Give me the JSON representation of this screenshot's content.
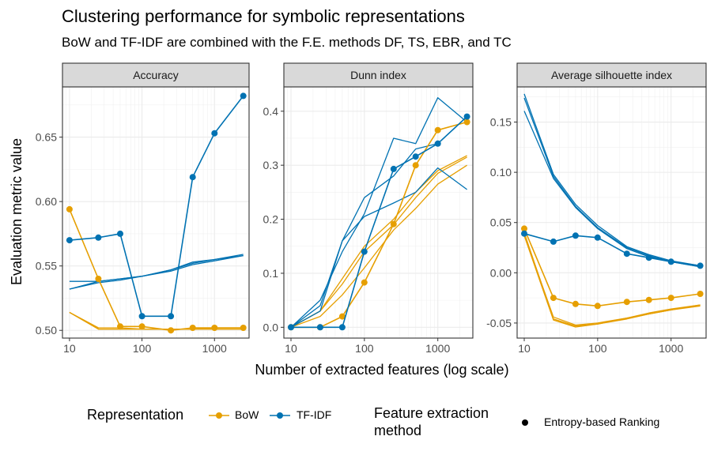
{
  "chart_data": {
    "type": "line",
    "title": "Clustering performance for symbolic representations",
    "subtitle": "BoW and TF-IDF are combined with the F.E. methods DF, TS, EBR, and TC",
    "xlabel": "Number of extracted features (log scale)",
    "ylabel": "Evaluation metric value",
    "x_scale": "log10",
    "x": [
      10,
      25,
      50,
      100,
      250,
      500,
      1000,
      2500
    ],
    "colors": {
      "BoW": "#E69F00",
      "TF-IDF": "#0072B2"
    },
    "legend": {
      "position": "bottom",
      "representation_title": "Representation",
      "representation_items": [
        "BoW",
        "TF-IDF"
      ],
      "method_title": "Feature extraction method",
      "method_items": [
        "Entropy-based Ranking"
      ]
    },
    "panels": [
      {
        "name": "Accuracy",
        "xlim": [
          8,
          3000
        ],
        "ylim": [
          0.494,
          0.689
        ],
        "xticks": [
          10,
          100,
          1000
        ],
        "xtick_labels": [
          "10",
          "100",
          "1000"
        ],
        "yticks": [
          0.5,
          0.55,
          0.6,
          0.65
        ],
        "ytick_labels": [
          "0.50",
          "0.55",
          "0.60",
          "0.65"
        ],
        "ebr": [
          {
            "representation": "BoW",
            "values": [
              0.594,
              0.54,
              0.503,
              0.503,
              0.5,
              0.502,
              0.502,
              0.502
            ]
          },
          {
            "representation": "TF-IDF",
            "values": [
              0.57,
              0.572,
              0.575,
              0.511,
              0.511,
              0.619,
              0.653,
              0.682
            ]
          }
        ],
        "other": [
          {
            "representation": "BoW",
            "values": [
              0.514,
              0.501,
              0.501,
              0.501,
              0.501,
              0.501,
              0.501,
              0.501
            ]
          },
          {
            "representation": "BoW",
            "values": [
              0.514,
              0.502,
              0.502,
              0.501,
              0.501,
              0.501,
              0.501,
              0.501
            ]
          },
          {
            "representation": "BoW",
            "values": [
              0.514,
              0.501,
              0.501,
              0.501,
              0.501,
              0.501,
              0.502,
              0.502
            ]
          },
          {
            "representation": "TF-IDF",
            "values": [
              0.532,
              0.538,
              0.54,
              0.542,
              0.546,
              0.551,
              0.554,
              0.558
            ]
          },
          {
            "representation": "TF-IDF",
            "values": [
              0.538,
              0.538,
              0.54,
              0.542,
              0.547,
              0.552,
              0.555,
              0.559
            ]
          },
          {
            "representation": "TF-IDF",
            "values": [
              0.532,
              0.537,
              0.539,
              0.542,
              0.547,
              0.553,
              0.555,
              0.558
            ]
          }
        ]
      },
      {
        "name": "Dunn index",
        "xlim": [
          8,
          3000
        ],
        "ylim": [
          -0.02,
          0.445
        ],
        "xticks": [
          10,
          100,
          1000
        ],
        "xtick_labels": [
          "10",
          "100",
          "1000"
        ],
        "yticks": [
          0.0,
          0.1,
          0.2,
          0.3,
          0.4
        ],
        "ytick_labels": [
          "0.0",
          "0.1",
          "0.2",
          "0.3",
          "0.4"
        ],
        "ebr": [
          {
            "representation": "BoW",
            "values": [
              0.0,
              0.0,
              0.02,
              0.083,
              0.191,
              0.3,
              0.365,
              0.38
            ]
          },
          {
            "representation": "TF-IDF",
            "values": [
              0.0,
              0.0,
              0.0,
              0.14,
              0.293,
              0.316,
              0.34,
              0.39
            ]
          }
        ],
        "other": [
          {
            "representation": "BoW",
            "values": [
              0.0,
              0.03,
              0.08,
              0.14,
              0.19,
              0.24,
              0.285,
              0.315
            ]
          },
          {
            "representation": "BoW",
            "values": [
              0.0,
              0.02,
              0.06,
              0.11,
              0.18,
              0.22,
              0.265,
              0.3
            ]
          },
          {
            "representation": "BoW",
            "values": [
              0.0,
              0.03,
              0.09,
              0.15,
              0.2,
              0.25,
              0.29,
              0.318
            ]
          },
          {
            "representation": "TF-IDF",
            "values": [
              0.0,
              0.04,
              0.16,
              0.24,
              0.28,
              0.33,
              0.34,
              0.39
            ]
          },
          {
            "representation": "TF-IDF",
            "values": [
              0.0,
              0.05,
              0.14,
              0.21,
              0.35,
              0.34,
              0.425,
              0.38
            ]
          },
          {
            "representation": "TF-IDF",
            "values": [
              0.0,
              0.03,
              0.16,
              0.205,
              0.23,
              0.25,
              0.295,
              0.255
            ]
          }
        ]
      },
      {
        "name": "Average silhouette index",
        "xlim": [
          8,
          3000
        ],
        "ylim": [
          -0.065,
          0.185
        ],
        "xticks": [
          10,
          100,
          1000
        ],
        "xtick_labels": [
          "10",
          "100",
          "1000"
        ],
        "yticks": [
          -0.05,
          0.0,
          0.05,
          0.1,
          0.15
        ],
        "ytick_labels": [
          "-0.05",
          "0.00",
          "0.05",
          "0.10",
          "0.15"
        ],
        "ebr": [
          {
            "representation": "BoW",
            "values": [
              0.044,
              -0.025,
              -0.031,
              -0.033,
              -0.029,
              -0.027,
              -0.025,
              -0.021
            ]
          },
          {
            "representation": "TF-IDF",
            "values": [
              0.039,
              0.031,
              0.037,
              0.035,
              0.019,
              0.015,
              0.011,
              0.007
            ]
          }
        ],
        "other": [
          {
            "representation": "BoW",
            "values": [
              0.04,
              -0.046,
              -0.053,
              -0.051,
              -0.046,
              -0.041,
              -0.037,
              -0.032
            ]
          },
          {
            "representation": "BoW",
            "values": [
              0.038,
              -0.044,
              -0.052,
              -0.05,
              -0.045,
              -0.04,
              -0.036,
              -0.032
            ]
          },
          {
            "representation": "BoW",
            "values": [
              0.037,
              -0.047,
              -0.054,
              -0.051,
              -0.045,
              -0.041,
              -0.037,
              -0.033
            ]
          },
          {
            "representation": "TF-IDF",
            "values": [
              0.178,
              0.098,
              0.068,
              0.047,
              0.026,
              0.018,
              0.012,
              0.007
            ]
          },
          {
            "representation": "TF-IDF",
            "values": [
              0.174,
              0.096,
              0.066,
              0.045,
              0.025,
              0.017,
              0.011,
              0.006
            ]
          },
          {
            "representation": "TF-IDF",
            "values": [
              0.161,
              0.094,
              0.065,
              0.044,
              0.024,
              0.016,
              0.011,
              0.006
            ]
          }
        ]
      }
    ]
  }
}
